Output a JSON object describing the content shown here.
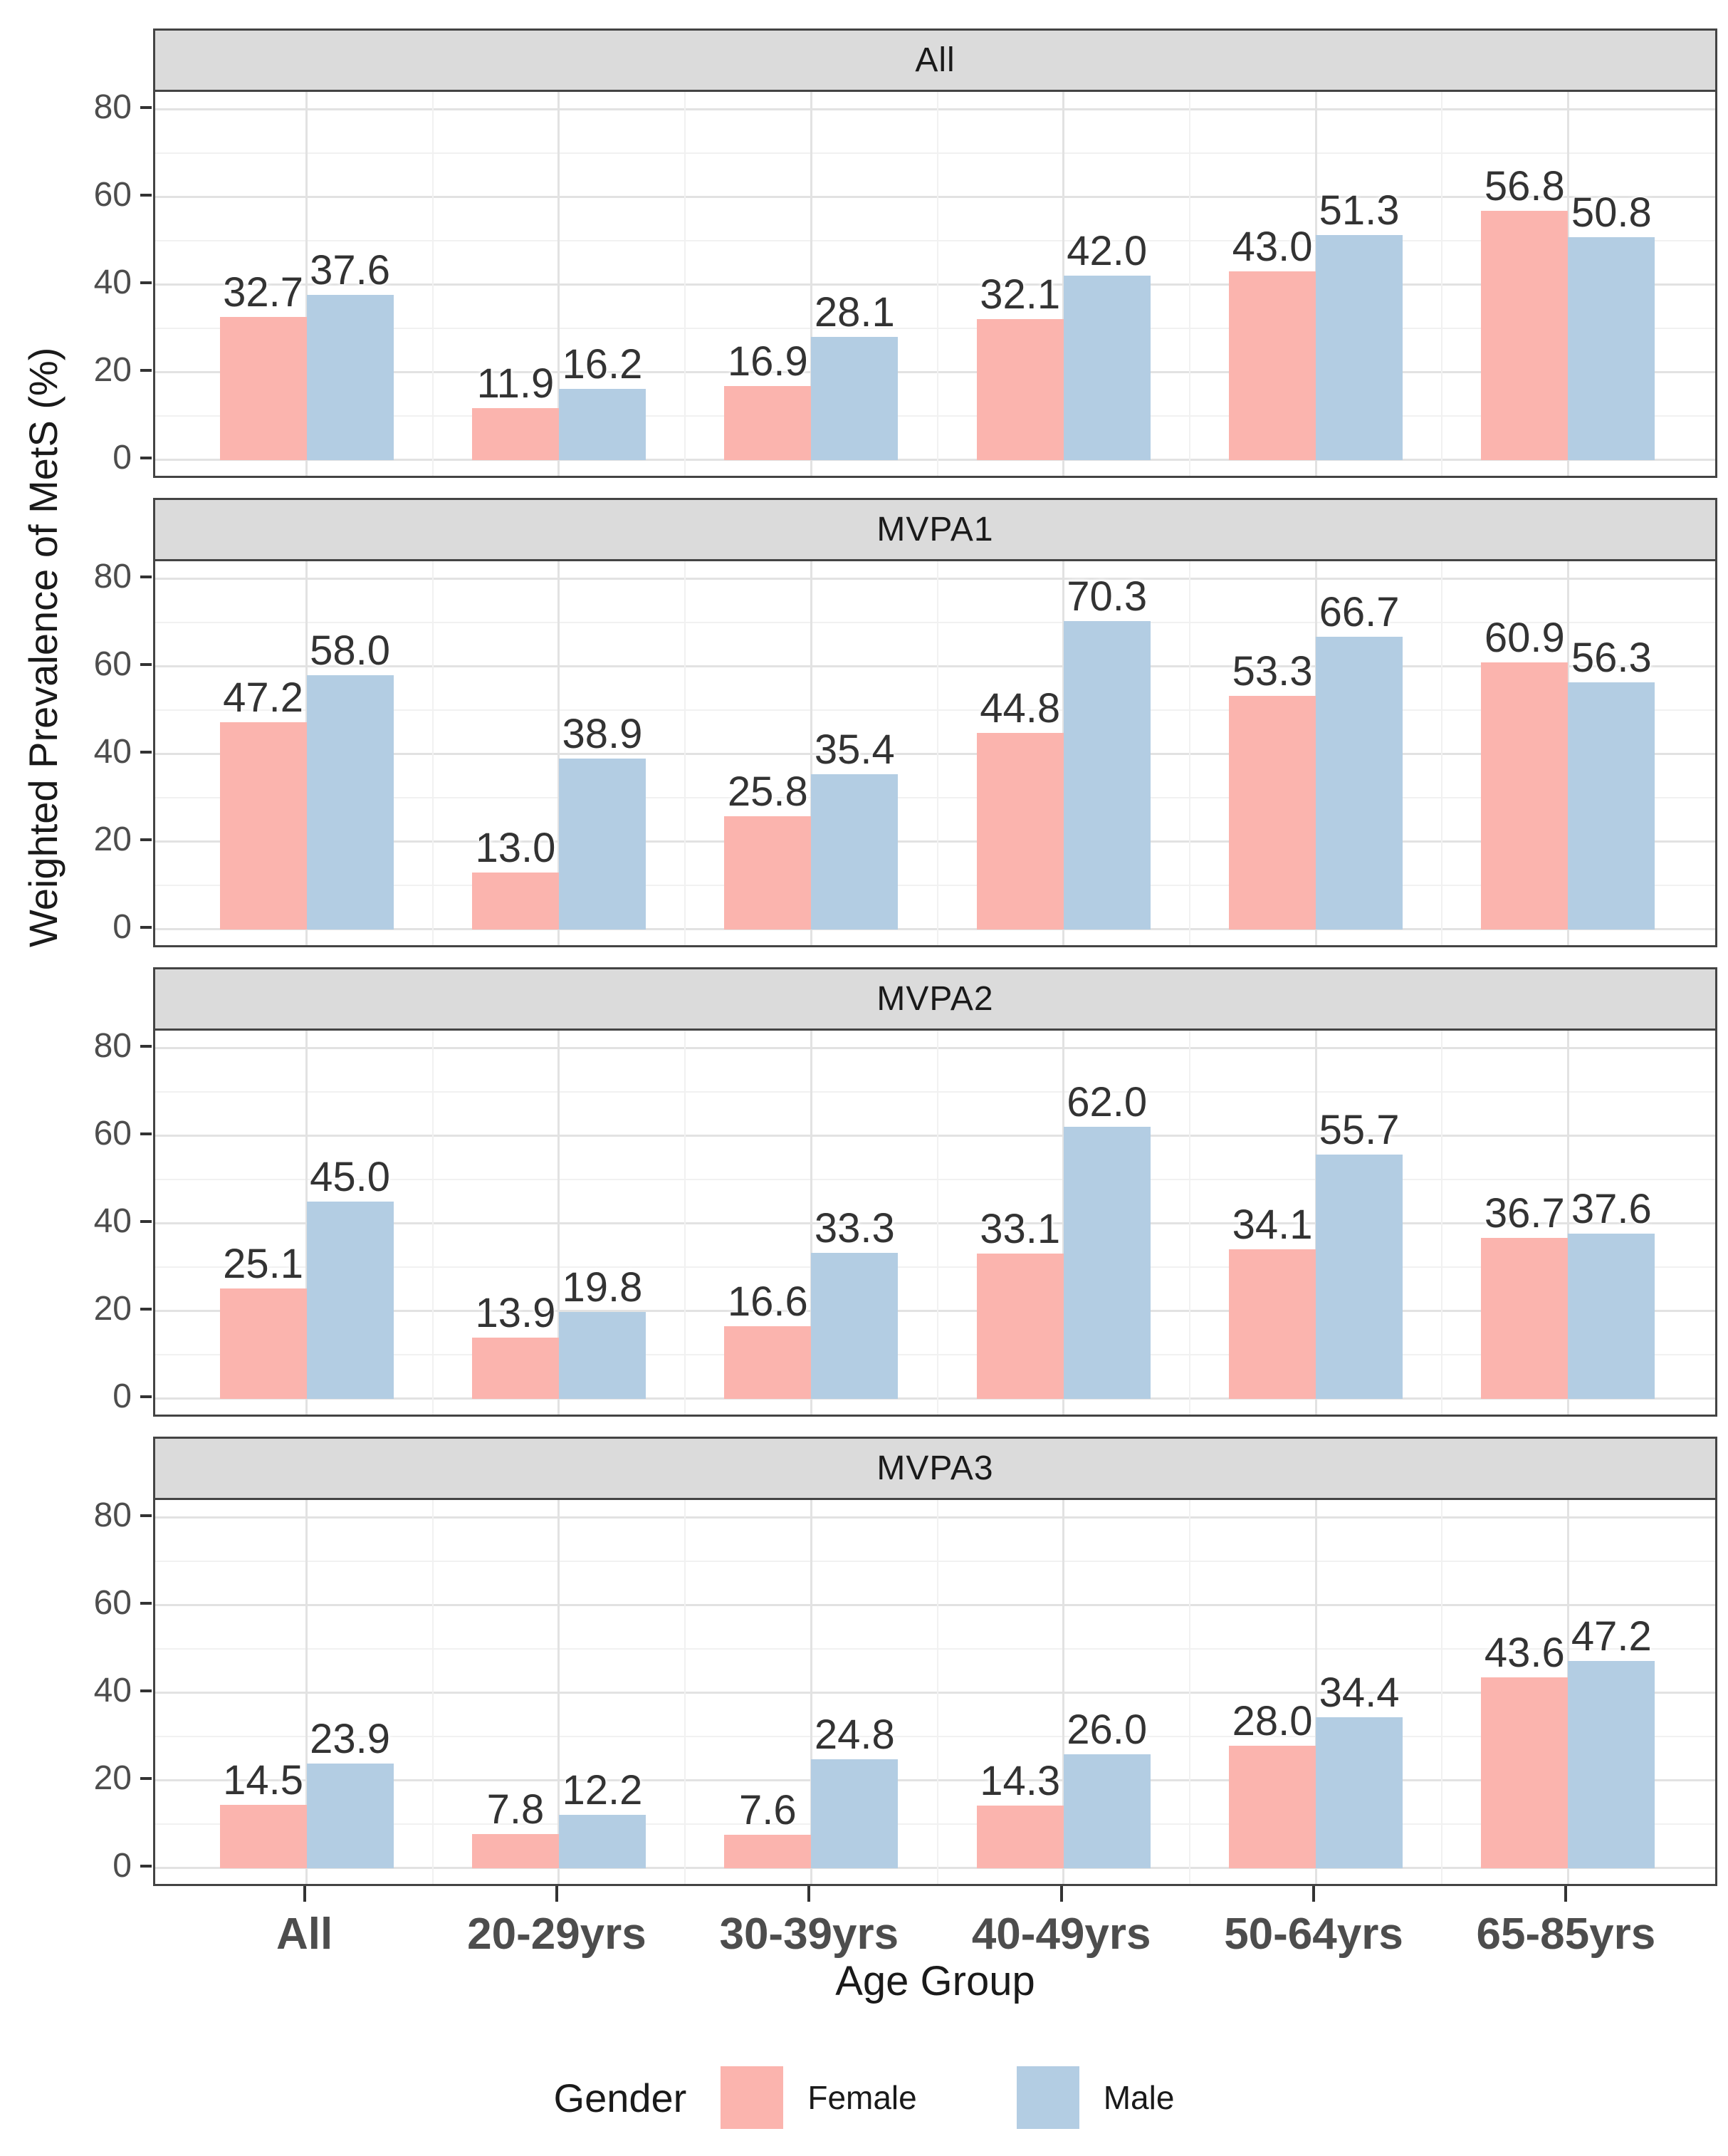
{
  "figure": {
    "y_axis_title": "Weighted Prevalence of MetS (%)",
    "x_axis_title": "Age Group",
    "legend": {
      "title": "Gender",
      "entries": [
        {
          "label": "Female",
          "color": "#FBB4AE"
        },
        {
          "label": "Male",
          "color": "#B3CDE3"
        }
      ]
    }
  },
  "chart_data": {
    "type": "bar",
    "categories": [
      "All",
      "20-29yrs",
      "30-39yrs",
      "40-49yrs",
      "50-64yrs",
      "65-85yrs"
    ],
    "xlabel": "Age Group",
    "ylabel": "Weighted Prevalence of MetS (%)",
    "ylim": [
      0,
      80
    ],
    "y_major_ticks": [
      0,
      20,
      40,
      60,
      80
    ],
    "y_minor_ticks": [
      10,
      30,
      50,
      70
    ],
    "grid": true,
    "legend_position": "bottom",
    "series_colors": {
      "Female": "#FBB4AE",
      "Male": "#B3CDE3"
    },
    "facets": [
      {
        "label": "All",
        "series": [
          {
            "name": "Female",
            "values": [
              32.7,
              11.9,
              16.9,
              32.1,
              43.0,
              56.8
            ]
          },
          {
            "name": "Male",
            "values": [
              37.6,
              16.2,
              28.1,
              42.0,
              51.3,
              50.8
            ]
          }
        ]
      },
      {
        "label": "MVPA1",
        "series": [
          {
            "name": "Female",
            "values": [
              47.2,
              13.0,
              25.8,
              44.8,
              53.3,
              60.9
            ]
          },
          {
            "name": "Male",
            "values": [
              58.0,
              38.9,
              35.4,
              70.3,
              66.7,
              56.3
            ]
          }
        ]
      },
      {
        "label": "MVPA2",
        "series": [
          {
            "name": "Female",
            "values": [
              25.1,
              13.9,
              16.6,
              33.1,
              34.1,
              36.7
            ]
          },
          {
            "name": "Male",
            "values": [
              45.0,
              19.8,
              33.3,
              62.0,
              55.7,
              37.6
            ]
          }
        ]
      },
      {
        "label": "MVPA3",
        "series": [
          {
            "name": "Female",
            "values": [
              14.5,
              7.8,
              7.6,
              14.3,
              28.0,
              43.6
            ]
          },
          {
            "name": "Male",
            "values": [
              23.9,
              12.2,
              24.8,
              26.0,
              34.4,
              47.2
            ]
          }
        ]
      }
    ]
  }
}
